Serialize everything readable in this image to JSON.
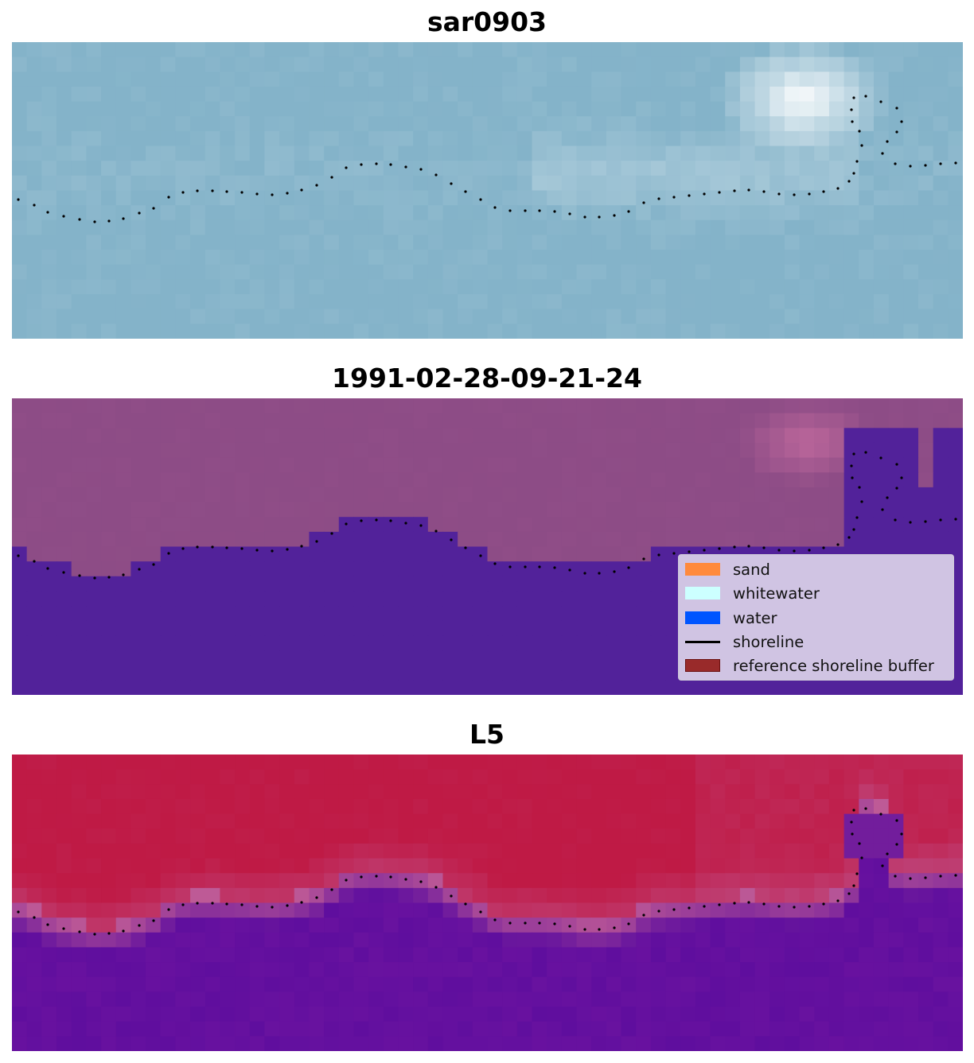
{
  "panels": [
    {
      "title": "sar0903"
    },
    {
      "title": "1991-02-28-09-21-24"
    },
    {
      "title": "L5"
    }
  ],
  "legend": {
    "items": [
      {
        "label": "sand",
        "color": "#ff8a3d",
        "kind": "patch"
      },
      {
        "label": "whitewater",
        "color": "#ccffff",
        "kind": "patch"
      },
      {
        "label": "water",
        "color": "#0055ff",
        "kind": "patch"
      },
      {
        "label": "shoreline",
        "color": "#000000",
        "kind": "line"
      },
      {
        "label": "reference shoreline buffer",
        "color": "#992a2a",
        "kind": "patch"
      }
    ]
  },
  "colors": {
    "sar_water": "#84b3c9",
    "sar_bright": "#ffffff",
    "class_water": "#52229a",
    "class_land": "#8d4c86",
    "index_high": "#bf1a45",
    "index_low": "#5f0e9e",
    "shoreline_dots": "#000000"
  }
}
